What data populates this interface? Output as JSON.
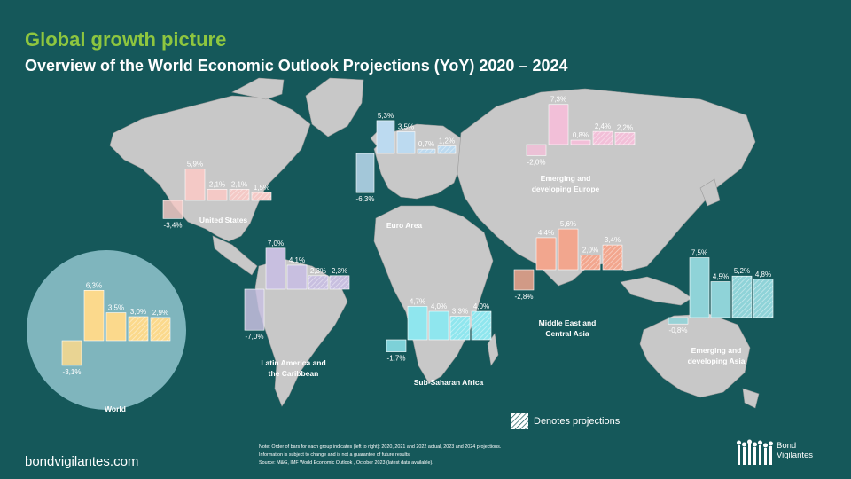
{
  "header": {
    "title": "Global growth picture",
    "subtitle": "Overview of the World Economic Outlook Projections (YoY) 2020 – 2024"
  },
  "colors": {
    "background": "#15585a",
    "title": "#8ec63f",
    "land": "#c8c8c8",
    "world_circle": "#7fb5bd"
  },
  "chart_data": [
    {
      "type": "bar",
      "name": "United States",
      "values": [
        -3.4,
        5.9,
        2.1,
        2.1,
        1.5
      ],
      "labels": [
        "-3,4%",
        "5,9%",
        "2,1%",
        "2,1%",
        "1,5%"
      ],
      "color": "#f4c9c6"
    },
    {
      "type": "bar",
      "name": "Euro Area",
      "values": [
        -6.3,
        5.3,
        3.5,
        0.7,
        1.2
      ],
      "labels": [
        "-6,3%",
        "5,3%",
        "3,5%",
        "0,7%",
        "1,2%"
      ],
      "color": "#bcdaf0"
    },
    {
      "type": "bar",
      "name": "Emerging and developing Europe",
      "values": [
        -2.0,
        7.3,
        0.8,
        2.4,
        2.2
      ],
      "labels": [
        "-2,0%",
        "7,3%",
        "0,8%",
        "2,4%",
        "2,2%"
      ],
      "color": "#f2bfd8"
    },
    {
      "type": "bar",
      "name": "Latin America and the Caribbean",
      "values": [
        -7.0,
        7.0,
        4.1,
        2.3,
        2.3
      ],
      "labels": [
        "-7,0%",
        "7,0%",
        "4,1%",
        "2,3%",
        "2,3%"
      ],
      "color": "#c8bfe0"
    },
    {
      "type": "bar",
      "name": "Sub-Saharan Africa",
      "values": [
        -1.7,
        4.7,
        4.0,
        3.3,
        4.0
      ],
      "labels": [
        "-1,7%",
        "4,7%",
        "4,0%",
        "3,3%",
        "4,0%"
      ],
      "color": "#8fe6ee"
    },
    {
      "type": "bar",
      "name": "Middle East and Central Asia",
      "values": [
        -2.8,
        4.4,
        5.6,
        2.0,
        3.4
      ],
      "labels": [
        "-2,8%",
        "4,4%",
        "5,6%",
        "2,0%",
        "3,4%"
      ],
      "color": "#f2a68e"
    },
    {
      "type": "bar",
      "name": "Emerging and developing Asia",
      "values": [
        -0.8,
        7.5,
        4.5,
        5.2,
        4.8
      ],
      "labels": [
        "-0,8%",
        "7,5%",
        "4,5%",
        "5,2%",
        "4,8%"
      ],
      "color": "#8fd3d8"
    },
    {
      "type": "bar",
      "name": "World",
      "values": [
        -3.1,
        6.3,
        3.5,
        3.0,
        2.9
      ],
      "labels": [
        "-3,1%",
        "6,3%",
        "3,5%",
        "3,0%",
        "2,9%"
      ],
      "color": "#fbd98c"
    }
  ],
  "legend": {
    "label": "Denotes projections"
  },
  "notes": {
    "line1": "Note: Order of bars for each group indicates (left to right): 2020, 2021 and 2022 actual, 2023 and 2024 projections.",
    "line2": "Information is subject to change and is not a guarantee of future results.",
    "line3": "Source: M&G, IMF World Economic Outlook , October 2023 (latest data available)."
  },
  "footer": {
    "url": "bondvigilantes.com",
    "logo_line1": "Bond",
    "logo_line2": "Vigilantes"
  }
}
